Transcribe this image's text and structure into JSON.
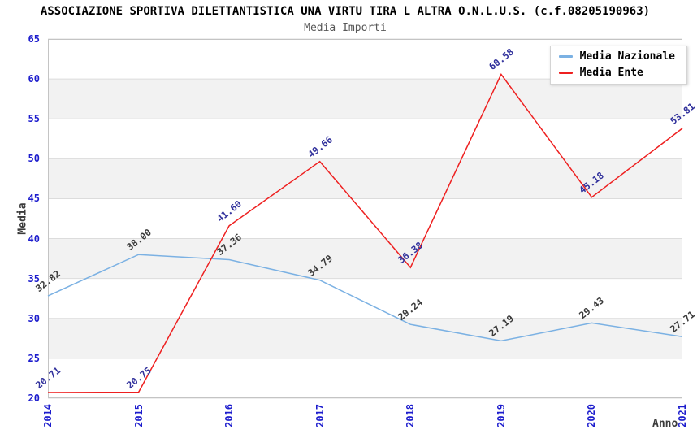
{
  "header": {
    "title": "ASSOCIAZIONE SPORTIVA DILETTANTISTICA UNA VIRTU TIRA L ALTRA O.N.L.U.S. (c.f.08205190963)",
    "subtitle": "Media Importi"
  },
  "chart_data": {
    "type": "line",
    "title": "Media Importi",
    "categories": [
      "2014",
      "2015",
      "2016",
      "2017",
      "2018",
      "2019",
      "2020",
      "2021"
    ],
    "series": [
      {
        "name": "Media Nazionale",
        "color": "#7bb1e3",
        "label_color": "#3b3b3b",
        "values": [
          32.82,
          38.0,
          37.36,
          34.79,
          29.24,
          27.19,
          29.43,
          27.71
        ]
      },
      {
        "name": "Media Ente",
        "color": "#ee2020",
        "label_color": "#31319c",
        "values": [
          20.71,
          20.75,
          41.6,
          49.66,
          36.38,
          60.58,
          45.18,
          53.81
        ]
      }
    ],
    "xlabel": "Anno",
    "ylabel": "Media",
    "ylim": [
      20,
      65
    ],
    "ytick_step": 5,
    "yticks": [
      20,
      25,
      30,
      35,
      40,
      45,
      50,
      55,
      60,
      65
    ],
    "legend_position": "top-right",
    "grid": "horizontal",
    "band_fill": "alternating"
  },
  "colors": {
    "tick_label": "#1c1ccd",
    "band": "#f2f2f2",
    "gridline": "#dcdcdc",
    "plot_border": "#c4c4c4",
    "subtitle": "#575757",
    "axis_label": "#3b3b3b",
    "legend_border": "#d4d4d4"
  }
}
